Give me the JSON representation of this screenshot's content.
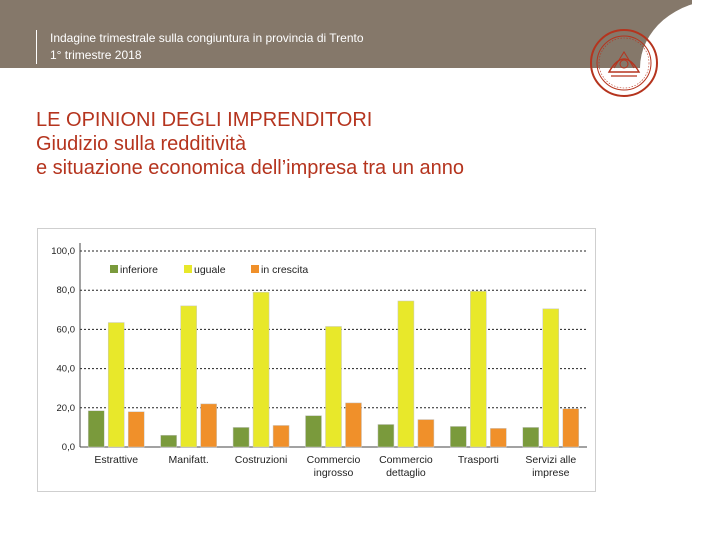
{
  "header": {
    "line1": "Indagine trimestrale sulla congiuntura in provincia di Trento",
    "line2": "1° trimestre 2018"
  },
  "heading": {
    "line1": "LE OPINIONI DEGLI IMPRENDITORI",
    "line2": "Giudizio sulla redditività",
    "line3": "e situazione economica dell’impresa tra un anno"
  },
  "colors": {
    "header_band": "#85786a",
    "heading": "#b5341e",
    "series": [
      "#7a9a3c",
      "#e8e82a",
      "#f0902a"
    ]
  },
  "chart_data": {
    "type": "bar",
    "categories": [
      "Estrattive",
      "Manifatt.",
      "Costruzioni",
      "Commercio ingrosso",
      "Commercio dettaglio",
      "Trasporti",
      "Servizi alle imprese"
    ],
    "category_lines": [
      [
        "Estrattive"
      ],
      [
        "Manifatt."
      ],
      [
        "Costruzioni"
      ],
      [
        "Commercio",
        "ingrosso"
      ],
      [
        "Commercio",
        "dettaglio"
      ],
      [
        "Trasporti"
      ],
      [
        "Servizi alle",
        "imprese"
      ]
    ],
    "series": [
      {
        "name": "inferiore",
        "values": [
          18.5,
          6.0,
          10.0,
          16.0,
          11.5,
          10.5,
          10.0
        ]
      },
      {
        "name": "uguale",
        "values": [
          63.5,
          72.0,
          79.0,
          61.5,
          74.5,
          79.5,
          70.5
        ]
      },
      {
        "name": "in crescita",
        "values": [
          18.0,
          22.0,
          11.0,
          22.5,
          14.0,
          9.5,
          19.5
        ]
      }
    ],
    "ylim": [
      0,
      100
    ],
    "yticks": [
      "0,0",
      "20,0",
      "40,0",
      "60,0",
      "80,0",
      "100,0"
    ],
    "grid": true,
    "legend": "top-left"
  }
}
